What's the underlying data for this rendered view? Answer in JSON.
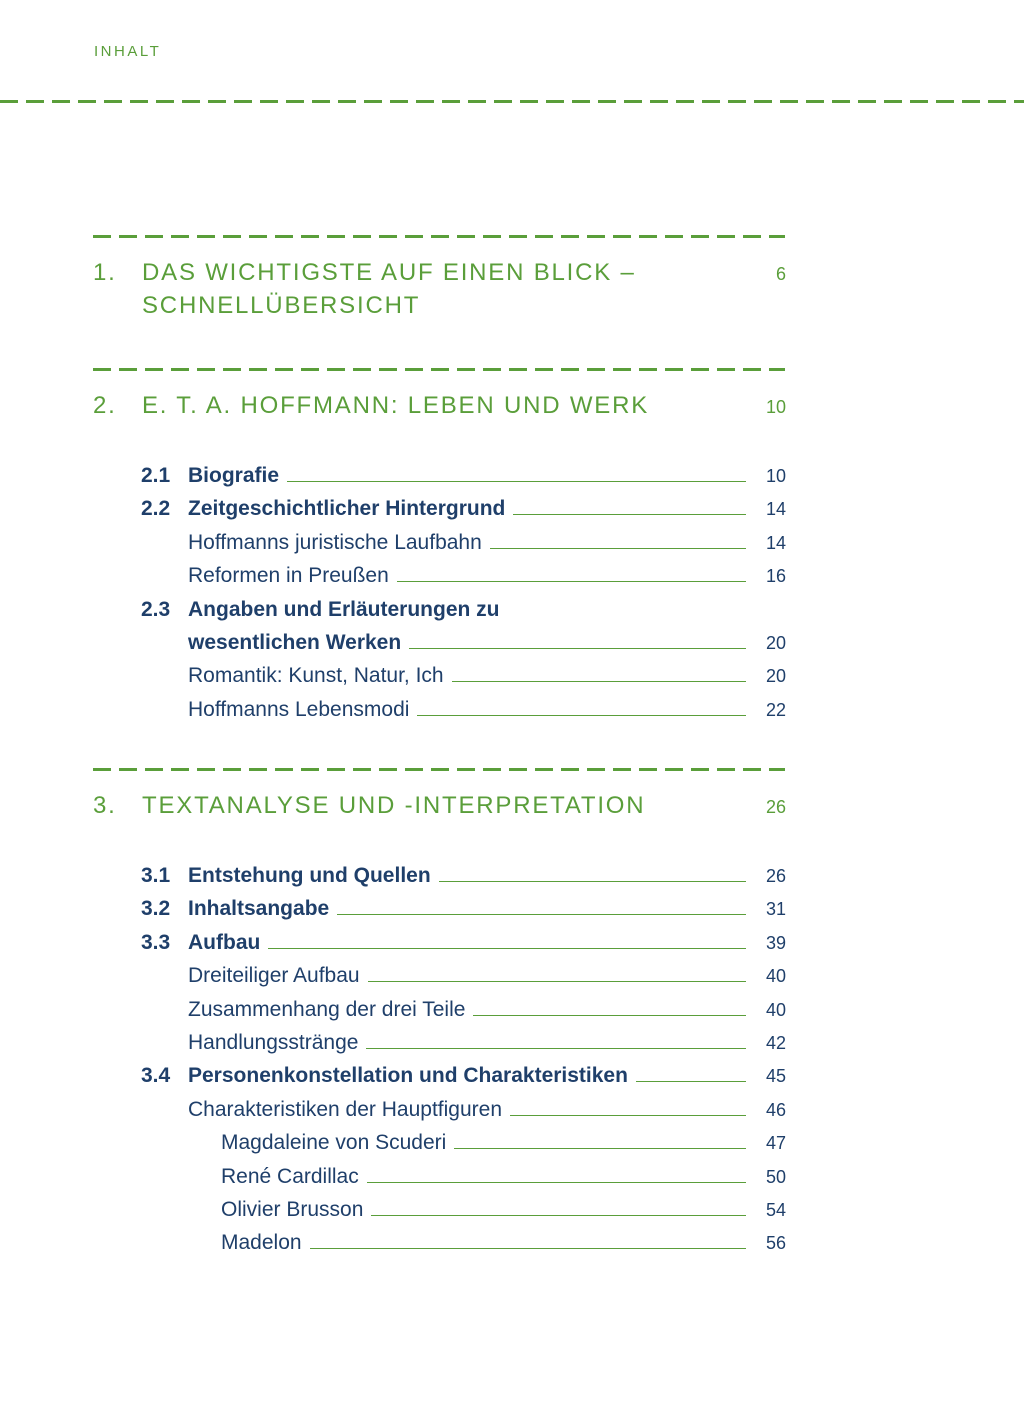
{
  "running_header": "INHALT",
  "colors": {
    "accent": "#5a9e3a",
    "text": "#1f3f6a"
  },
  "sections": [
    {
      "number": "1.",
      "title": "DAS WICHTIGSTE AUF EINEN BLICK –",
      "title_line2": "SCHNELLÜBERSICHT",
      "page": "6",
      "entries": []
    },
    {
      "number": "2.",
      "title": "E. T. A. HOFFMANN: LEBEN UND WERK",
      "page": "10",
      "entries": [
        {
          "level": 1,
          "number": "2.1",
          "text": "Biografie",
          "page": "10"
        },
        {
          "level": 1,
          "number": "2.2",
          "text": "Zeitgeschichtlicher Hintergrund",
          "page": "14"
        },
        {
          "level": 2,
          "text": "Hoffmanns juristische Laufbahn",
          "page": "14"
        },
        {
          "level": 2,
          "text": "Reformen in Preußen",
          "page": "16"
        },
        {
          "level": 1,
          "number": "2.3",
          "text": "Angaben und Erläuterungen zu",
          "page": ""
        },
        {
          "level": 1,
          "number": "",
          "text": "wesentlichen Werken",
          "page": "20"
        },
        {
          "level": 2,
          "text": "Romantik: Kunst, Natur, Ich",
          "page": "20"
        },
        {
          "level": 2,
          "text": "Hoffmanns Lebensmodi",
          "page": "22"
        }
      ]
    },
    {
      "number": "3.",
      "title": "TEXTANALYSE UND -INTERPRETATION",
      "page": "26",
      "entries": [
        {
          "level": 1,
          "number": "3.1",
          "text": "Entstehung und Quellen",
          "page": "26"
        },
        {
          "level": 1,
          "number": "3.2",
          "text": "Inhaltsangabe",
          "page": "31"
        },
        {
          "level": 1,
          "number": "3.3",
          "text": "Aufbau",
          "page": "39"
        },
        {
          "level": 2,
          "text": "Dreiteiliger Aufbau",
          "page": "40"
        },
        {
          "level": 2,
          "text": "Zusammenhang der drei Teile",
          "page": "40"
        },
        {
          "level": 2,
          "text": "Handlungsstränge",
          "page": "42"
        },
        {
          "level": 1,
          "number": "3.4",
          "text": "Personenkonstellation und Charakteristiken",
          "page": "45"
        },
        {
          "level": 2,
          "text": "Charakteristiken der Hauptfiguren",
          "page": "46"
        },
        {
          "level": 3,
          "text": "Magdaleine von Scuderi",
          "page": "47"
        },
        {
          "level": 3,
          "text": "René Cardillac",
          "page": "50"
        },
        {
          "level": 3,
          "text": "Olivier Brusson",
          "page": "54"
        },
        {
          "level": 3,
          "text": "Madelon",
          "page": "56"
        }
      ]
    }
  ]
}
